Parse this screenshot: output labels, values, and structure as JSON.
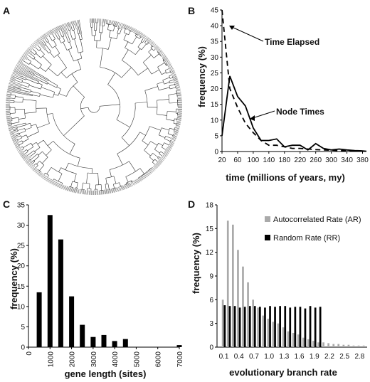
{
  "panels": {
    "A": {
      "letter": "A"
    },
    "B": {
      "letter": "B"
    },
    "C": {
      "letter": "C"
    },
    "D": {
      "letter": "D"
    }
  },
  "chart_data": [
    {
      "panel": "B",
      "type": "line",
      "xlabel": "time (millions of years, my)",
      "ylabel": "frequency (%)",
      "x": [
        20,
        40,
        60,
        80,
        100,
        120,
        140,
        160,
        180,
        200,
        220,
        240,
        260,
        280,
        300,
        320,
        340,
        360,
        380,
        390
      ],
      "xticks": [
        20,
        60,
        100,
        140,
        180,
        220,
        260,
        300,
        340,
        380
      ],
      "yticks": [
        0,
        5,
        10,
        15,
        20,
        25,
        30,
        35,
        40,
        45
      ],
      "xlim": [
        20,
        390
      ],
      "ylim": [
        0,
        45
      ],
      "series": [
        {
          "name": "Time Elapsed",
          "style": "dashed",
          "values": [
            45,
            20,
            14,
            9,
            6,
            3.5,
            2,
            2,
            1.5,
            1,
            1,
            0.8,
            0.6,
            0.5,
            0.4,
            0.3,
            0.2,
            0.2,
            0.1,
            0.1
          ]
        },
        {
          "name": "Node Times",
          "style": "solid",
          "values": [
            5,
            24,
            17.5,
            14.5,
            7.5,
            3.5,
            3.5,
            4,
            1.5,
            2,
            2,
            0.5,
            2.5,
            1,
            0.5,
            0.8,
            0.5,
            0.3,
            0.2,
            0.1
          ]
        }
      ],
      "annotations": [
        "Time Elapsed",
        "Node Times"
      ]
    },
    {
      "panel": "C",
      "type": "bar",
      "xlabel": "gene length (sites)",
      "ylabel": "frequency (%)",
      "x": [
        500,
        1000,
        1500,
        2000,
        2500,
        3000,
        3500,
        4000,
        4500,
        7000
      ],
      "values": [
        13.5,
        32.5,
        26.5,
        12.5,
        5.5,
        2.5,
        3,
        1.5,
        2,
        0.5
      ],
      "xticks": [
        0,
        1000,
        2000,
        3000,
        4000,
        5000,
        6000,
        7000
      ],
      "yticks": [
        0,
        5,
        10,
        15,
        20,
        25,
        30,
        35
      ],
      "xlim": [
        0,
        7000
      ],
      "ylim": [
        0,
        35
      ]
    },
    {
      "panel": "D",
      "type": "bar",
      "xlabel": "evolutionary branch rate",
      "ylabel": "frequency (%)",
      "x": [
        0.1,
        0.2,
        0.3,
        0.4,
        0.5,
        0.6,
        0.7,
        0.8,
        0.9,
        1.0,
        1.1,
        1.2,
        1.3,
        1.4,
        1.5,
        1.6,
        1.7,
        1.8,
        1.9,
        2.0,
        2.1,
        2.2,
        2.3,
        2.4,
        2.5,
        2.6,
        2.7,
        2.8,
        2.9
      ],
      "xticks": [
        "0.1",
        "0.4",
        "0.7",
        "1.0",
        "1.3",
        "1.6",
        "1.9",
        "2.2",
        "2.5",
        "2.8"
      ],
      "yticks": [
        0,
        3,
        6,
        9,
        12,
        15,
        18
      ],
      "ylim": [
        0,
        18
      ],
      "series": [
        {
          "name": "Autocorrelated Rate (AR)",
          "color": "#aaaaaa",
          "values": [
            6,
            16,
            15.5,
            12.3,
            10.2,
            8.2,
            6,
            5,
            4,
            3.6,
            3.2,
            3,
            2.5,
            2,
            1.8,
            1.6,
            1.2,
            1,
            0.8,
            0.6,
            0.6,
            0.5,
            0.4,
            0.4,
            0.3,
            0.3,
            0.2,
            0.2,
            0.2
          ]
        },
        {
          "name": "Random Rate (RR)",
          "color": "#000000",
          "values": [
            5.3,
            5.2,
            5.2,
            5,
            5.1,
            5.2,
            5.2,
            5.1,
            5,
            5.2,
            5.1,
            5.2,
            5.2,
            5,
            5.1,
            5.1,
            4.9,
            5.2,
            5,
            5.1,
            0,
            0,
            0,
            0,
            0,
            0,
            0,
            0,
            0
          ]
        }
      ]
    }
  ],
  "colors": {
    "ar": "#aaaaaa",
    "rr": "#000000",
    "tree": "#333333"
  }
}
